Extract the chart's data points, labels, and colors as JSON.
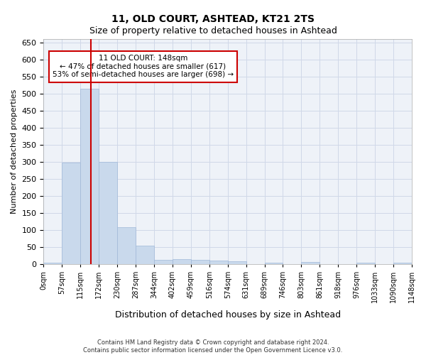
{
  "title": "11, OLD COURT, ASHTEAD, KT21 2TS",
  "subtitle": "Size of property relative to detached houses in Ashtead",
  "xlabel": "Distribution of detached houses by size in Ashtead",
  "ylabel": "Number of detached properties",
  "footer1": "Contains HM Land Registry data © Crown copyright and database right 2024.",
  "footer2": "Contains public sector information licensed under the Open Government Licence v3.0.",
  "bin_labels": [
    "0sqm",
    "57sqm",
    "115sqm",
    "172sqm",
    "230sqm",
    "287sqm",
    "344sqm",
    "402sqm",
    "459sqm",
    "516sqm",
    "574sqm",
    "631sqm",
    "689sqm",
    "746sqm",
    "803sqm",
    "861sqm",
    "918sqm",
    "976sqm",
    "1033sqm",
    "1090sqm",
    "1148sqm"
  ],
  "bar_values": [
    3,
    298,
    515,
    300,
    107,
    53,
    12,
    13,
    12,
    9,
    7,
    0,
    3,
    0,
    5,
    0,
    0,
    3,
    0,
    3
  ],
  "bar_color": "#c9d9ec",
  "bar_edge_color": "#a0b8d8",
  "grid_color": "#d0d8e8",
  "bg_color": "#eef2f8",
  "red_line_x": 2.58,
  "annotation_text": "11 OLD COURT: 148sqm\n← 47% of detached houses are smaller (617)\n53% of semi-detached houses are larger (698) →",
  "annotation_box_color": "#ffffff",
  "annotation_border_color": "#cc0000",
  "ylim": [
    0,
    660
  ],
  "yticks": [
    0,
    50,
    100,
    150,
    200,
    250,
    300,
    350,
    400,
    450,
    500,
    550,
    600,
    650
  ]
}
